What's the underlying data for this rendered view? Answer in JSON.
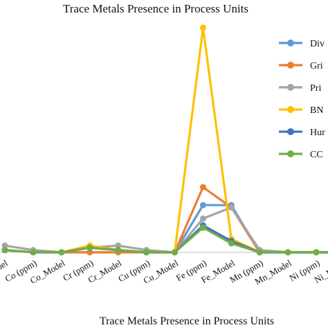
{
  "chart_data": {
    "type": "line",
    "title": "Trace Metals Presence in Process Units",
    "xlabel": "Trace Metals Presence in Process Units",
    "ylabel": "",
    "categories": [
      "Co (ppm)",
      "Co_Model",
      "Cr (ppm)",
      "Cr_Model",
      "Cu (ppm)",
      "Cu_Model",
      "Fe (ppm)",
      "Fe_Model",
      "Mn (ppm)",
      "Mn_Model",
      "Ni (ppm)",
      "Ni_Model"
    ],
    "leading_tick_label": "Model",
    "ylim": [
      0,
      100
    ],
    "grid": false,
    "legend_position": "right",
    "series": [
      {
        "name": "Div",
        "color": "#5b9bd5",
        "values": [
          0,
          0,
          0,
          0,
          0,
          0,
          21,
          21,
          0,
          0,
          0,
          0
        ]
      },
      {
        "name": "Gri",
        "color": "#ed7d31",
        "values": [
          0,
          0,
          0,
          0,
          0,
          0,
          29,
          20,
          0,
          0,
          0,
          0
        ]
      },
      {
        "name": "Pri",
        "color": "#a5a5a5",
        "values": [
          1,
          0,
          2,
          3,
          1,
          0,
          15,
          20,
          1,
          0,
          0,
          0
        ]
      },
      {
        "name": "BN",
        "color": "#ffc000",
        "values": [
          0,
          0,
          3,
          1,
          0,
          0,
          100,
          6,
          0,
          0,
          0,
          0
        ]
      },
      {
        "name": "Hur",
        "color": "#4472c4",
        "values": [
          0,
          0,
          2,
          1,
          0,
          0,
          12,
          5,
          0,
          0,
          0,
          0
        ]
      },
      {
        "name": "CC",
        "color": "#70ad47",
        "values": [
          0,
          0,
          2,
          1,
          0,
          0,
          11,
          4,
          0,
          0,
          0,
          0
        ]
      }
    ],
    "leading_values": {
      "Div": 1,
      "Gri": 1,
      "Pri": 3,
      "BN": 1,
      "Hur": 1,
      "CC": 1
    }
  }
}
